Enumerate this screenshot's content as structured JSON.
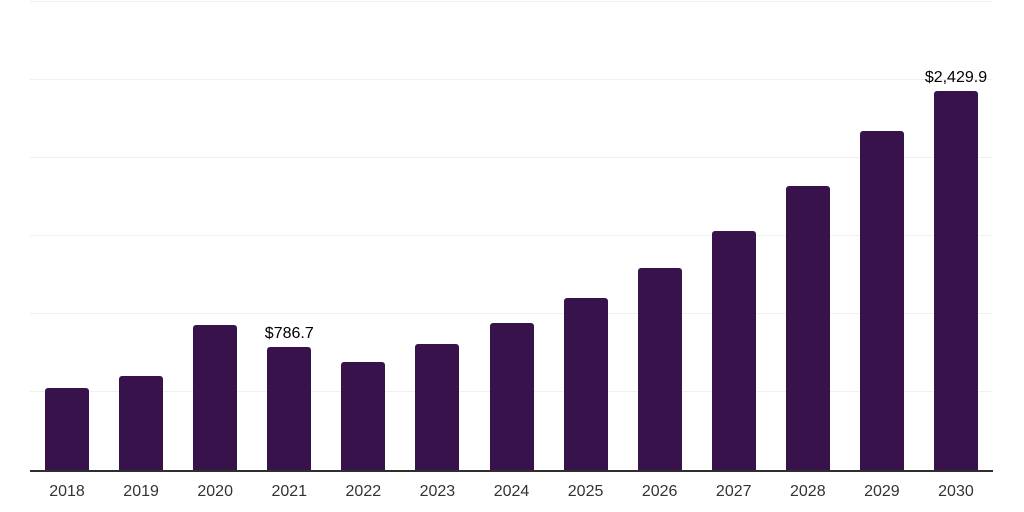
{
  "chart_data": {
    "type": "bar",
    "title": "",
    "xlabel": "",
    "ylabel": "",
    "categories": [
      "2018",
      "2019",
      "2020",
      "2021",
      "2022",
      "2023",
      "2024",
      "2025",
      "2026",
      "2027",
      "2028",
      "2029",
      "2030"
    ],
    "values": [
      525,
      600,
      930,
      786.7,
      695,
      810,
      940,
      1100,
      1295,
      1530,
      1820,
      2170,
      2429.9
    ],
    "annotations": [
      {
        "category": "2021",
        "text": "$786.7"
      },
      {
        "category": "2030",
        "text": "$2,429.9"
      }
    ],
    "ylim": [
      0,
      3000
    ],
    "gridline_step": 500,
    "grid": "horizontal",
    "legend": "none",
    "y_axis_labels_visible": false,
    "bar_color": "#37124B",
    "axis_line_color": "#2e2e2e",
    "gridline_color": "#f0f0f0",
    "tick_label_color": "#333333",
    "data_label_color": "#000000",
    "background_color": "#ffffff"
  }
}
